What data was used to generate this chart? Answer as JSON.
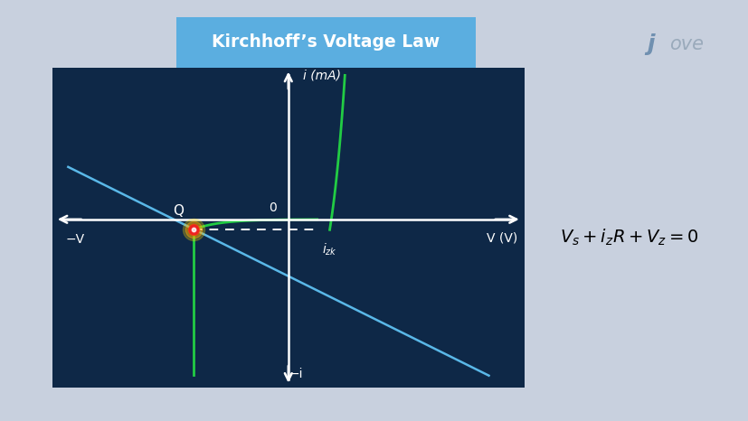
{
  "bg_color": "#0e2847",
  "outer_bg": "#c8d0de",
  "title": "Kirchhoff’s Voltage Law",
  "title_bg_left": "#5baee0",
  "title_bg_right": "#3a80c0",
  "title_color": "white",
  "axis_color": "white",
  "green_curve_color": "#22cc44",
  "blue_line_color": "#5ab8e8",
  "dashed_color": "white",
  "Q_dot_color": "#ee2222",
  "Q_dot_glow": "#ffcc00",
  "label_i_mA": "i (mA)",
  "label_neg_i": "−i",
  "label_V": "V (V)",
  "label_neg_V": "−V",
  "label_zero": "0",
  "label_Q": "Q",
  "label_izk": "i_zk",
  "xmin": -4.5,
  "xmax": 4.5,
  "ymin": -4.2,
  "ymax": 3.8,
  "Q_x": -1.8,
  "Q_y": -0.25,
  "izk_x": 0.6,
  "blue_slope": -0.65
}
